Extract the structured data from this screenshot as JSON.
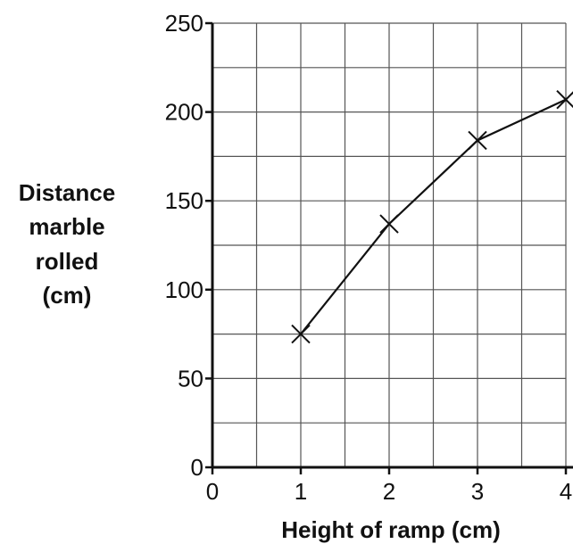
{
  "chart_data": {
    "type": "line",
    "title": "",
    "xlabel": "Height of ramp (cm)",
    "ylabel_lines": [
      "Distance",
      "marble",
      "rolled",
      "(cm)"
    ],
    "xlim": [
      0,
      4
    ],
    "ylim": [
      0,
      250
    ],
    "x_ticks": [
      0,
      1,
      2,
      3,
      4
    ],
    "y_ticks": [
      0,
      50,
      100,
      150,
      200,
      250
    ],
    "grid": true,
    "series": [
      {
        "x": [
          1,
          2,
          3,
          4
        ],
        "values": [
          75,
          137,
          184,
          207
        ],
        "marker": "cross",
        "color": "#111111"
      }
    ]
  }
}
